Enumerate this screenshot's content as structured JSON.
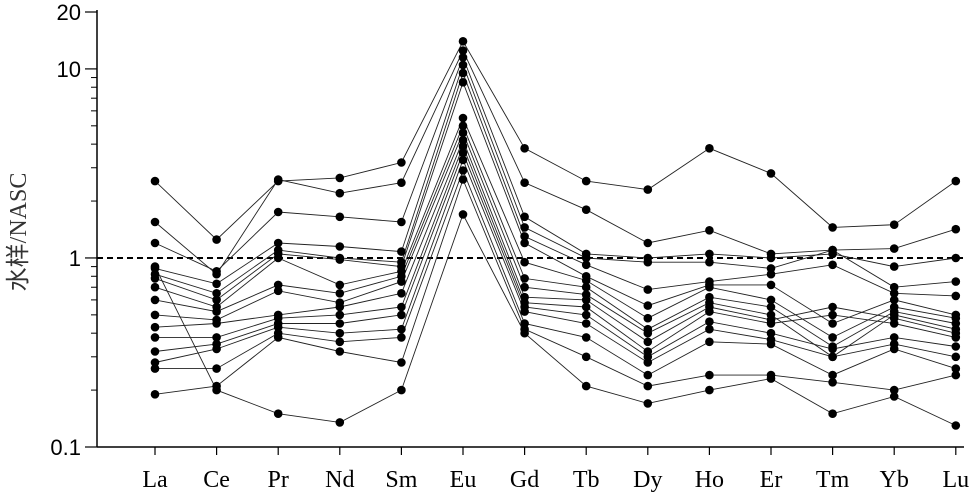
{
  "chart_data": {
    "type": "line",
    "title": "",
    "xlabel": "",
    "ylabel": "水样/NASC",
    "y_scale": "log",
    "ylim": [
      0.1,
      20
    ],
    "y_ticks": [
      {
        "value": 0.1,
        "label": "0.1"
      },
      {
        "value": 1,
        "label": "1"
      },
      {
        "value": 10,
        "label": "10"
      },
      {
        "value": 20,
        "label": "20"
      }
    ],
    "reference_line": {
      "y": 1,
      "style": "dashed"
    },
    "categories": [
      "La",
      "Ce",
      "Pr",
      "Nd",
      "Sm",
      "Eu",
      "Gd",
      "Tb",
      "Dy",
      "Ho",
      "Er",
      "Tm",
      "Yb",
      "Lu"
    ],
    "series": [
      {
        "values": [
          2.55,
          1.25,
          2.55,
          2.65,
          3.2,
          14.0,
          3.8,
          2.55,
          2.3,
          3.8,
          2.8,
          1.45,
          1.5,
          2.55
        ]
      },
      {
        "values": [
          1.55,
          0.82,
          2.6,
          2.2,
          2.5,
          12.5,
          2.5,
          1.8,
          1.2,
          1.4,
          1.05,
          1.1,
          1.12,
          1.42
        ]
      },
      {
        "values": [
          1.2,
          0.85,
          1.75,
          1.65,
          1.55,
          11.5,
          1.65,
          1.05,
          1.0,
          1.05,
          1.0,
          1.05,
          0.9,
          1.0
        ]
      },
      {
        "values": [
          0.88,
          0.73,
          1.2,
          1.15,
          1.08,
          10.5,
          1.45,
          1.0,
          0.95,
          0.95,
          0.88,
          1.1,
          0.7,
          0.75
        ]
      },
      {
        "values": [
          0.82,
          0.65,
          1.1,
          1.0,
          0.95,
          9.5,
          1.3,
          0.92,
          0.68,
          0.75,
          0.82,
          0.92,
          0.65,
          0.63
        ]
      },
      {
        "values": [
          0.78,
          0.6,
          1.05,
          0.98,
          0.9,
          8.5,
          1.2,
          0.8,
          0.56,
          0.72,
          0.72,
          0.45,
          0.6,
          0.5
        ]
      },
      {
        "values": [
          0.7,
          0.55,
          1.0,
          0.72,
          0.85,
          5.5,
          0.95,
          0.76,
          0.48,
          0.7,
          0.6,
          0.38,
          0.55,
          0.48
        ]
      },
      {
        "values": [
          0.6,
          0.52,
          0.72,
          0.65,
          0.8,
          5.0,
          0.78,
          0.7,
          0.42,
          0.62,
          0.55,
          0.34,
          0.52,
          0.45
        ]
      },
      {
        "values": [
          0.5,
          0.47,
          0.67,
          0.58,
          0.75,
          4.6,
          0.7,
          0.64,
          0.4,
          0.58,
          0.5,
          0.3,
          0.5,
          0.42
        ]
      },
      {
        "values": [
          0.43,
          0.45,
          0.5,
          0.55,
          0.65,
          4.2,
          0.62,
          0.6,
          0.36,
          0.55,
          0.47,
          0.55,
          0.48,
          0.4
        ]
      },
      {
        "values": [
          0.38,
          0.38,
          0.48,
          0.5,
          0.55,
          3.9,
          0.58,
          0.55,
          0.32,
          0.52,
          0.45,
          0.5,
          0.45,
          0.38
        ]
      },
      {
        "values": [
          0.32,
          0.35,
          0.45,
          0.45,
          0.5,
          3.6,
          0.55,
          0.5,
          0.3,
          0.46,
          0.4,
          0.33,
          0.38,
          0.34
        ]
      },
      {
        "values": [
          0.28,
          0.33,
          0.43,
          0.4,
          0.42,
          3.3,
          0.52,
          0.45,
          0.28,
          0.42,
          0.37,
          0.3,
          0.35,
          0.3
        ]
      },
      {
        "values": [
          0.26,
          0.26,
          0.4,
          0.36,
          0.38,
          2.9,
          0.45,
          0.38,
          0.24,
          0.36,
          0.35,
          0.24,
          0.33,
          0.26
        ]
      },
      {
        "values": [
          0.19,
          0.21,
          0.38,
          0.32,
          0.28,
          2.6,
          0.42,
          0.3,
          0.21,
          0.24,
          0.24,
          0.22,
          0.2,
          0.24
        ]
      },
      {
        "values": [
          0.9,
          0.2,
          0.15,
          0.135,
          0.2,
          1.7,
          0.4,
          0.21,
          0.17,
          0.2,
          0.23,
          0.15,
          0.185,
          0.13
        ]
      }
    ]
  }
}
